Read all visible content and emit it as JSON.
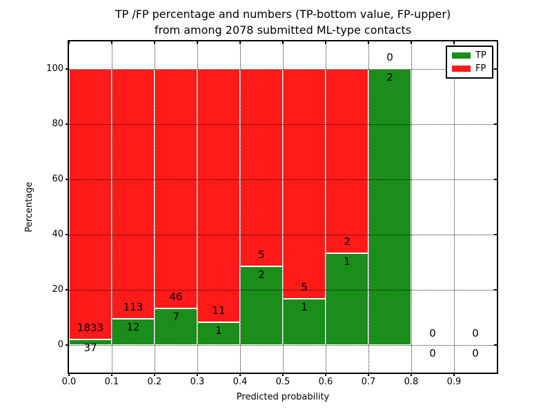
{
  "chart_data": {
    "type": "bar",
    "stacked": true,
    "title_line1": "TP /FP percentage and numbers (TP-bottom value, FP-upper)",
    "title_line2": "from among 2078 submitted ML-type contacts",
    "xlabel": "Predicted probability",
    "ylabel": "Percentage",
    "x_tick_labels": [
      "0.0",
      "0.1",
      "0.2",
      "0.3",
      "0.4",
      "0.5",
      "0.6",
      "0.7",
      "0.8",
      "0.9"
    ],
    "x_tick_values": [
      0.0,
      0.1,
      0.2,
      0.3,
      0.4,
      0.5,
      0.6,
      0.7,
      0.8,
      0.9
    ],
    "y_tick_labels": [
      "0",
      "20",
      "40",
      "60",
      "80",
      "100"
    ],
    "y_tick_values": [
      0,
      20,
      40,
      60,
      80,
      100
    ],
    "xlim": [
      0.0,
      1.0
    ],
    "ylim": [
      -10,
      110
    ],
    "bin_starts": [
      0.0,
      0.1,
      0.2,
      0.3,
      0.4,
      0.5,
      0.6,
      0.7,
      0.8,
      0.9
    ],
    "bin_width": 0.1,
    "unit": "percent",
    "grid_style": "dotted",
    "legend_position": "upper right",
    "bar_edge_color": "#ffffff",
    "series": [
      {
        "name": "TP",
        "position": "bottom",
        "color": "#1a8d1a",
        "counts": [
          37,
          12,
          7,
          1,
          2,
          1,
          1,
          2,
          0,
          0
        ]
      },
      {
        "name": "FP",
        "position": "top",
        "color": "#ff1a1a",
        "counts": [
          1833,
          113,
          46,
          11,
          5,
          5,
          2,
          0,
          0,
          0
        ]
      }
    ]
  }
}
